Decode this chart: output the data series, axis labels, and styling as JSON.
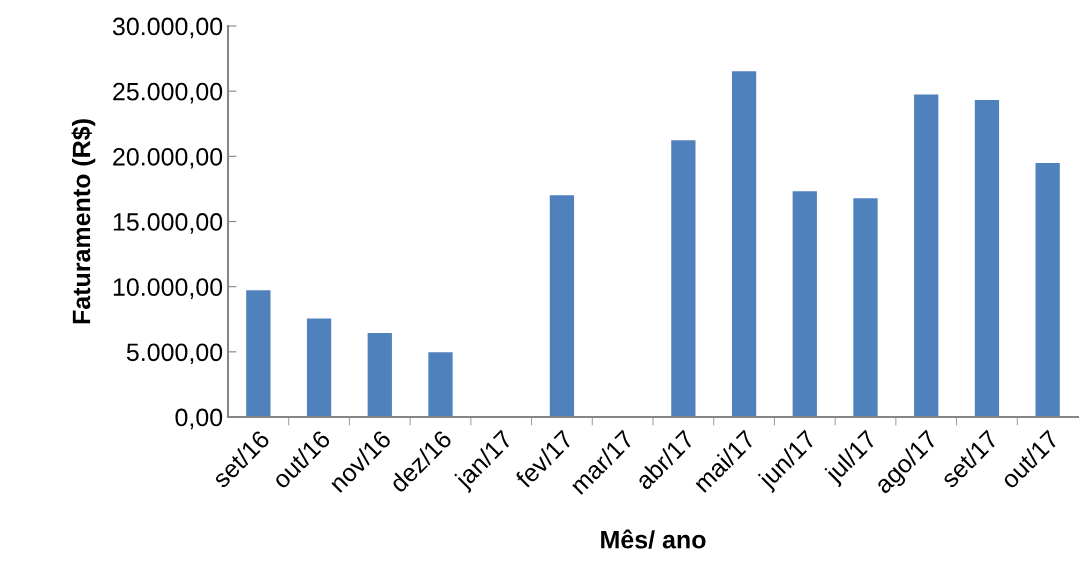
{
  "chart_data": {
    "type": "bar",
    "xlabel": "Mês/ ano",
    "ylabel": "Faturamento (R$)",
    "categories": [
      "set/16",
      "out/16",
      "nov/16",
      "dez/16",
      "jan/17",
      "fev/17",
      "mar/17",
      "abr/17",
      "mai/17",
      "jun/17",
      "jul/17",
      "ago/17",
      "set/17",
      "out/17"
    ],
    "values": [
      9730,
      7550,
      6450,
      4970,
      0,
      17020,
      0,
      21240,
      26520,
      17330,
      16790,
      24750,
      24320,
      19480
    ],
    "color": "#4f81bd",
    "ylim": [
      0,
      30000
    ],
    "yticks": [
      {
        "value": 0,
        "label": "0,00"
      },
      {
        "value": 5000,
        "label": "5.000,00"
      },
      {
        "value": 10000,
        "label": "10.000,00"
      },
      {
        "value": 15000,
        "label": "15.000,00"
      },
      {
        "value": 20000,
        "label": "20.000,00"
      },
      {
        "value": 25000,
        "label": "25.000,00"
      },
      {
        "value": 30000,
        "label": "30.000,00"
      }
    ],
    "grid": false,
    "legend": false
  }
}
